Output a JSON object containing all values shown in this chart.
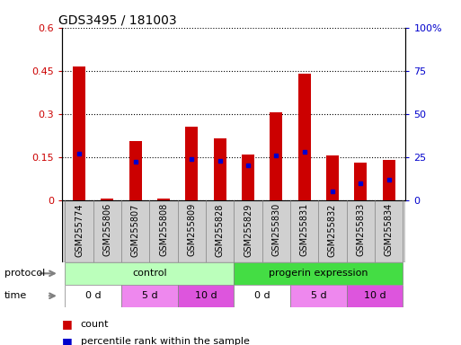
{
  "title": "GDS3495 / 181003",
  "samples": [
    "GSM255774",
    "GSM255806",
    "GSM255807",
    "GSM255808",
    "GSM255809",
    "GSM255828",
    "GSM255829",
    "GSM255830",
    "GSM255831",
    "GSM255832",
    "GSM255833",
    "GSM255834"
  ],
  "red_values": [
    0.465,
    0.005,
    0.205,
    0.005,
    0.255,
    0.215,
    0.16,
    0.305,
    0.44,
    0.155,
    0.13,
    0.14
  ],
  "blue_values_pct": [
    27,
    0,
    22,
    0,
    24,
    23,
    20,
    26,
    28,
    5,
    10,
    12
  ],
  "ylim_left": [
    0,
    0.6
  ],
  "ylim_right": [
    0,
    100
  ],
  "yticks_left": [
    0,
    0.15,
    0.3,
    0.45,
    0.6
  ],
  "yticks_right": [
    0,
    25,
    50,
    75,
    100
  ],
  "ytick_labels_left": [
    "0",
    "0.15",
    "0.3",
    "0.45",
    "0.6"
  ],
  "ytick_labels_right": [
    "0",
    "25",
    "50",
    "75",
    "100%"
  ],
  "left_axis_color": "#cc0000",
  "right_axis_color": "#0000cc",
  "bar_color": "#cc0000",
  "blue_color": "#0000cc",
  "protocol_groups": [
    {
      "label": "control",
      "start": 0,
      "end": 5,
      "color": "#bbffbb"
    },
    {
      "label": "progerin expression",
      "start": 6,
      "end": 11,
      "color": "#44dd44"
    }
  ],
  "time_groups": [
    {
      "label": "0 d",
      "start": 0,
      "end": 1,
      "color": "#ffffff"
    },
    {
      "label": "5 d",
      "start": 2,
      "end": 3,
      "color": "#ee88ee"
    },
    {
      "label": "10 d",
      "start": 4,
      "end": 5,
      "color": "#dd55dd"
    },
    {
      "label": "0 d",
      "start": 6,
      "end": 7,
      "color": "#ffffff"
    },
    {
      "label": "5 d",
      "start": 8,
      "end": 9,
      "color": "#ee88ee"
    },
    {
      "label": "10 d",
      "start": 10,
      "end": 11,
      "color": "#dd55dd"
    }
  ],
  "legend_items": [
    {
      "label": "count",
      "color": "#cc0000"
    },
    {
      "label": "percentile rank within the sample",
      "color": "#0000cc"
    }
  ],
  "xtick_bg": "#d0d0d0",
  "bg_color": "#ffffff",
  "bar_width": 0.45,
  "chart_facecolor": "#ffffff"
}
